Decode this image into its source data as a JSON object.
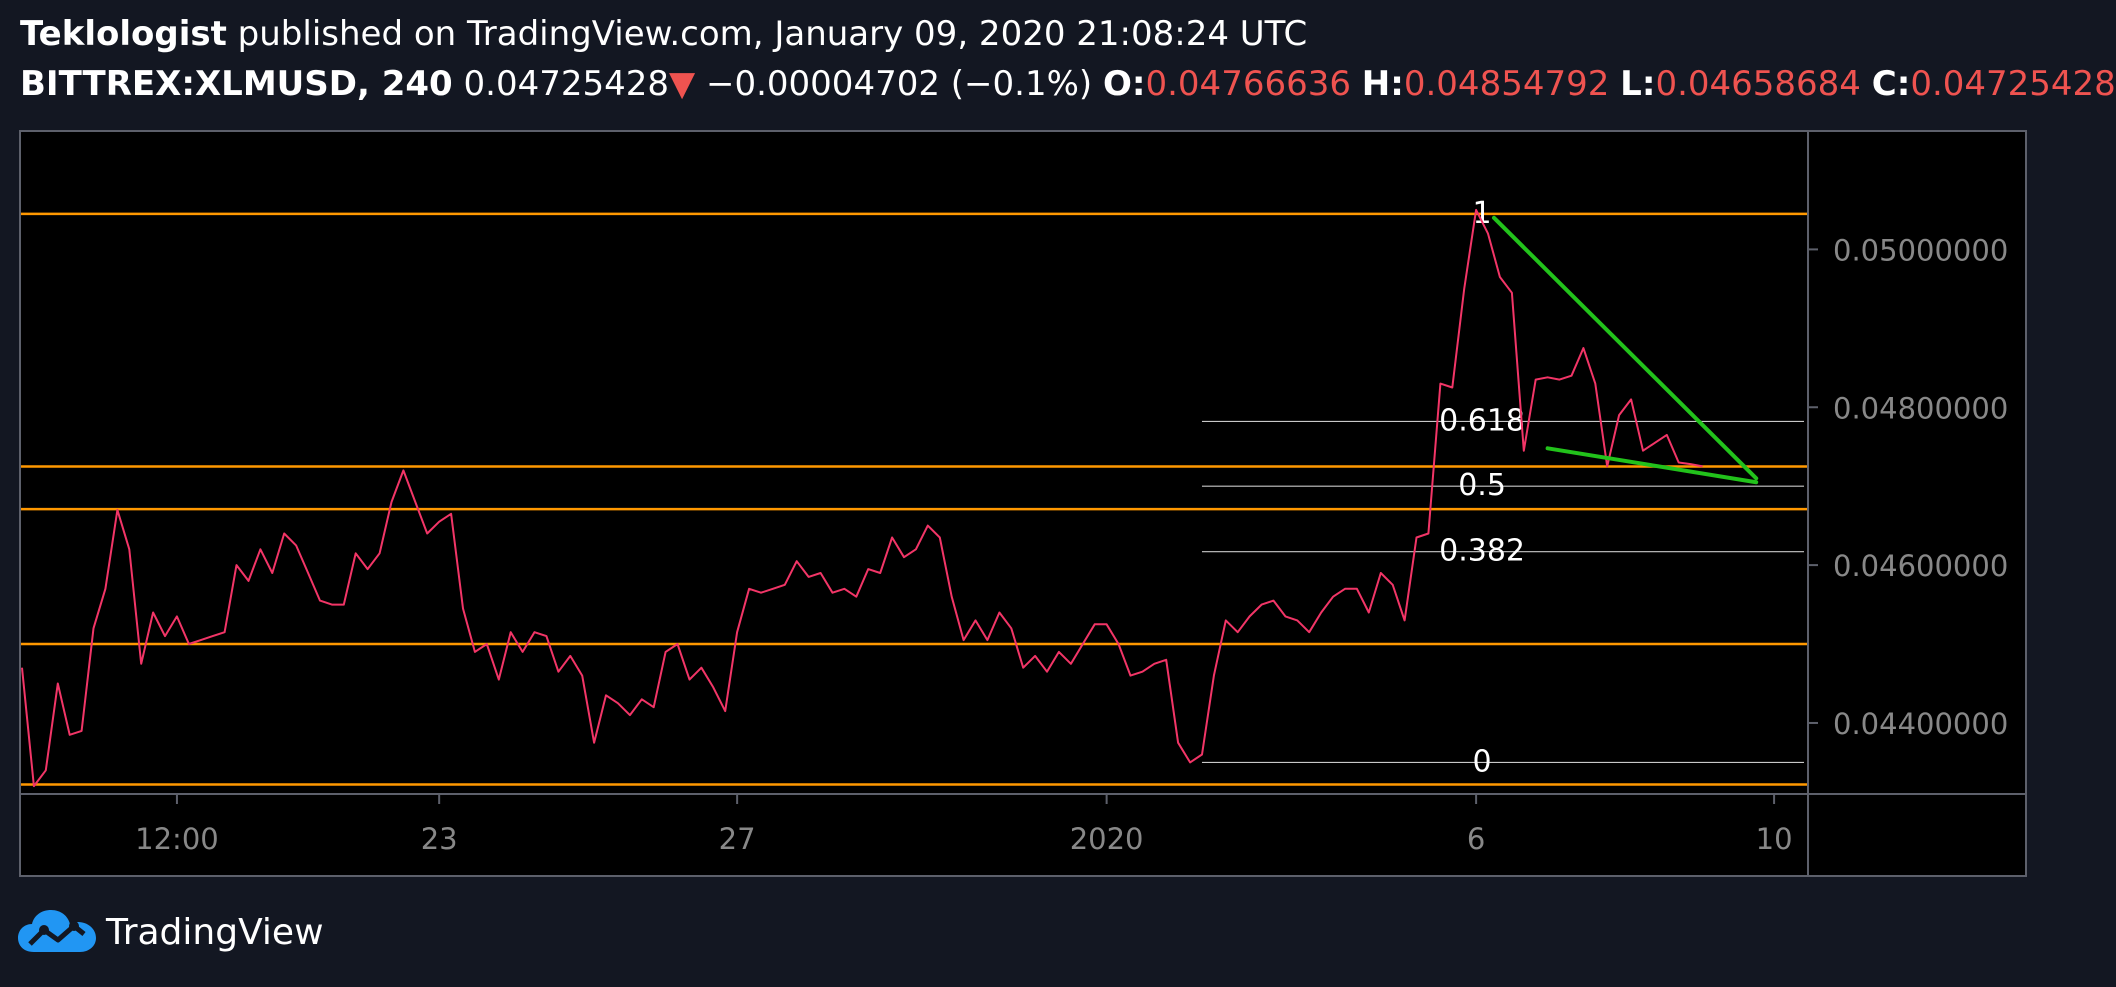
{
  "header": {
    "author": "Teklologist",
    "published_text": "published on TradingView.com, January 09, 2020 21:08:24 UTC",
    "symbol": "BITTREX:XLMUSD, 240",
    "last": "0.04725428",
    "change": "−0.00004702 (−0.1%)",
    "o_label": "O:",
    "o": "0.04766636",
    "h_label": "H:",
    "h": "0.04854792",
    "l_label": "L:",
    "l": "0.04658684",
    "c_label": "C:",
    "c": "0.04725428"
  },
  "brand": {
    "name": "TradingView",
    "logo_icon": "tradingview-cloud-icon"
  },
  "colors": {
    "background": "#131722",
    "plot_bg": "#000000",
    "price_line": "#f23567",
    "horizontal_levels": "#ff9800",
    "fib_lines": "#c8c8c8",
    "trend_lines": "#22c21b",
    "axis_text": "#888888",
    "down_red": "#ef5350",
    "logo_blue": "#2196f3"
  },
  "chart_data": {
    "type": "line",
    "symbol": "BITTREX:XLMUSD",
    "interval": "240",
    "x_ticks": [
      "12:00",
      "23",
      "27",
      "2020",
      "6",
      "10"
    ],
    "y_ticks": [
      "0.05000000",
      "0.04800000",
      "0.04600000",
      "0.04400000"
    ],
    "ylim": [
      0.0431,
      0.0515
    ],
    "x_range_bars": [
      0,
      148
    ],
    "x_tick_bars": [
      13,
      35,
      60,
      91,
      122,
      147
    ],
    "series": [
      {
        "values": [
          0.0447,
          0.0432,
          0.0434,
          0.0445,
          0.04385,
          0.0439,
          0.0452,
          0.0457,
          0.0467,
          0.0462,
          0.04475,
          0.0454,
          0.0451,
          0.04535,
          0.045,
          0.04505,
          0.0451,
          0.04515,
          0.046,
          0.0458,
          0.0462,
          0.0459,
          0.0464,
          0.04625,
          0.0459,
          0.04555,
          0.0455,
          0.0455,
          0.04615,
          0.04595,
          0.04615,
          0.0468,
          0.0472,
          0.0468,
          0.0464,
          0.04655,
          0.04665,
          0.04545,
          0.0449,
          0.045,
          0.04455,
          0.04515,
          0.0449,
          0.04515,
          0.0451,
          0.04465,
          0.04485,
          0.0446,
          0.04375,
          0.04435,
          0.04425,
          0.0441,
          0.0443,
          0.0442,
          0.0449,
          0.045,
          0.04455,
          0.0447,
          0.04445,
          0.04415,
          0.04515,
          0.0457,
          0.04565,
          0.0457,
          0.04575,
          0.04605,
          0.04585,
          0.0459,
          0.04565,
          0.0457,
          0.0456,
          0.04595,
          0.0459,
          0.04635,
          0.0461,
          0.0462,
          0.0465,
          0.04635,
          0.0456,
          0.04505,
          0.0453,
          0.04505,
          0.0454,
          0.0452,
          0.0447,
          0.04485,
          0.04465,
          0.0449,
          0.04475,
          0.045,
          0.04525,
          0.04525,
          0.045,
          0.0446,
          0.04465,
          0.04475,
          0.0448,
          0.04375,
          0.0435,
          0.0436,
          0.0446,
          0.0453,
          0.04515,
          0.04535,
          0.0455,
          0.04555,
          0.04535,
          0.0453,
          0.04515,
          0.0454,
          0.0456,
          0.0457,
          0.0457,
          0.0454,
          0.0459,
          0.04575,
          0.0453,
          0.04635,
          0.0464,
          0.0483,
          0.04825,
          0.0495,
          0.0505,
          0.0502,
          0.04965,
          0.04945,
          0.04745,
          0.04835,
          0.04838,
          0.04835,
          0.0484,
          0.04875,
          0.0483,
          0.04725,
          0.0479,
          0.0481,
          0.04745,
          0.04755,
          0.04765,
          0.0473,
          0.04728,
          0.04725
        ]
      }
    ],
    "horizontal_levels": [
      0.05045,
      0.04725,
      0.04671,
      0.045,
      0.04322
    ],
    "fibonacci": {
      "start_bar": 99,
      "end_bar": 148,
      "label_bar": 122.5,
      "levels": [
        {
          "label": "1",
          "value": 0.05045
        },
        {
          "label": "0.618",
          "value": 0.04782
        },
        {
          "label": "0.5",
          "value": 0.047
        },
        {
          "label": "0.382",
          "value": 0.04617
        },
        {
          "label": "0",
          "value": 0.0435
        }
      ]
    },
    "trend_lines": [
      {
        "from": [
          123.5,
          0.0504
        ],
        "to": [
          145.5,
          0.0471
        ]
      },
      {
        "from": [
          128,
          0.04748
        ],
        "to": [
          145.5,
          0.04705
        ]
      }
    ]
  }
}
